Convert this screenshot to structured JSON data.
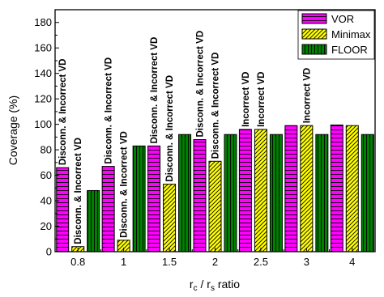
{
  "chart_data": {
    "type": "bar",
    "categories": [
      "0.8",
      "1",
      "1.5",
      "2",
      "2.5",
      "3",
      "4"
    ],
    "series": [
      {
        "name": "VOR",
        "values": [
          66,
          67,
          83,
          88,
          96,
          99,
          99.5
        ],
        "color": "#ff00ff",
        "pattern": "horizontal-lines"
      },
      {
        "name": "Minimax",
        "values": [
          4,
          9,
          53,
          71,
          96,
          99,
          99
        ],
        "color": "#ffff00",
        "pattern": "diagonal-lines"
      },
      {
        "name": "FLOOR",
        "values": [
          48,
          83,
          92,
          92,
          92,
          92,
          92
        ],
        "color": "#008000",
        "pattern": "vertical-lines"
      }
    ],
    "xlabel": {
      "r1": "r",
      "s1": "c",
      "mid": " / ",
      "r2": "r",
      "s2": "s",
      "tail": " ratio"
    },
    "ylabel": "Coverage (%)",
    "ylim": [
      0,
      190
    ],
    "yticks": [
      0,
      20,
      40,
      60,
      80,
      100,
      120,
      140,
      160,
      180
    ],
    "legend_position": "top-right",
    "grid": false,
    "annotations": [
      {
        "text": "Disconn. & Incorrect VD",
        "category": "0.8",
        "series": "VOR"
      },
      {
        "text": "Disconn. & Incorrect VD",
        "category": "0.8",
        "series": "Minimax"
      },
      {
        "text": "Disconn. & Incorrect VD",
        "category": "1",
        "series": "VOR"
      },
      {
        "text": "Disconn. & Incorrect VD",
        "category": "1",
        "series": "Minimax"
      },
      {
        "text": "Disconn. & Incorrect VD",
        "category": "1.5",
        "series": "VOR"
      },
      {
        "text": "Disconn. & Incorrect VD",
        "category": "1.5",
        "series": "Minimax"
      },
      {
        "text": "Disconn. & Incorrect VD",
        "category": "2",
        "series": "VOR"
      },
      {
        "text": "Disconn. & Incorrect VD",
        "category": "2",
        "series": "Minimax"
      },
      {
        "text": "Incorrect VD",
        "category": "2.5",
        "series": "VOR"
      },
      {
        "text": "Incorrect VD",
        "category": "2.5",
        "series": "Minimax"
      },
      {
        "text": "Incorrect VD",
        "category": "3",
        "series": "Minimax"
      }
    ]
  }
}
